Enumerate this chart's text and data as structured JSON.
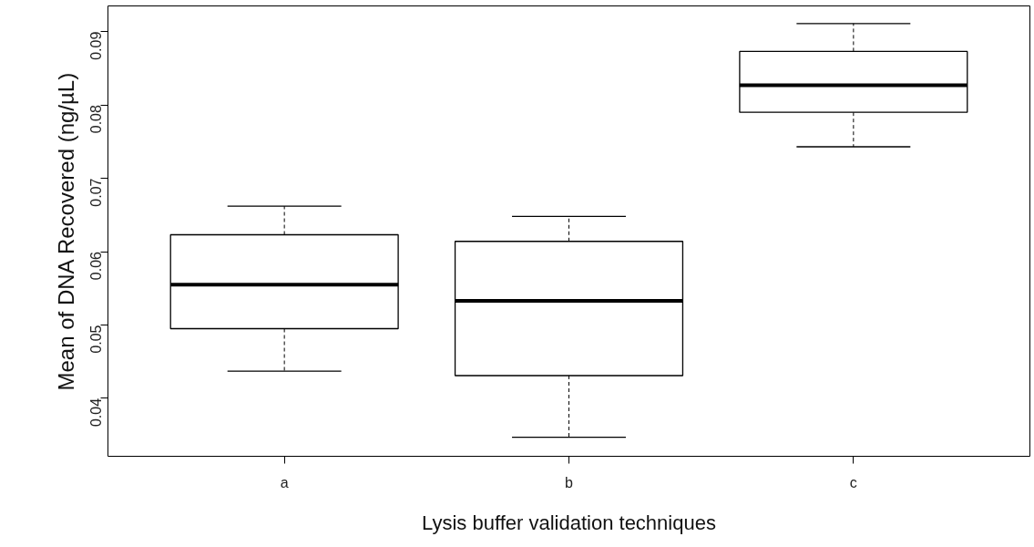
{
  "chart_data": {
    "type": "box",
    "xlabel": "Lysis buffer validation techniques",
    "ylabel": "Mean of DNA Recovered (ng/µL)",
    "categories": [
      "a",
      "b",
      "c"
    ],
    "boxes": [
      {
        "low": 0.0437,
        "q1": 0.0495,
        "median": 0.0555,
        "q3": 0.0623,
        "high": 0.0662
      },
      {
        "low": 0.0347,
        "q1": 0.0431,
        "median": 0.0533,
        "q3": 0.0614,
        "high": 0.0648
      },
      {
        "low": 0.0743,
        "q1": 0.079,
        "median": 0.0827,
        "q3": 0.0873,
        "high": 0.0911
      }
    ],
    "ylim": [
      0.0321,
      0.0935
    ],
    "yticks": [
      0.04,
      0.05,
      0.06,
      0.07,
      0.08,
      0.09
    ],
    "grid": false,
    "color": "#ffffff"
  }
}
